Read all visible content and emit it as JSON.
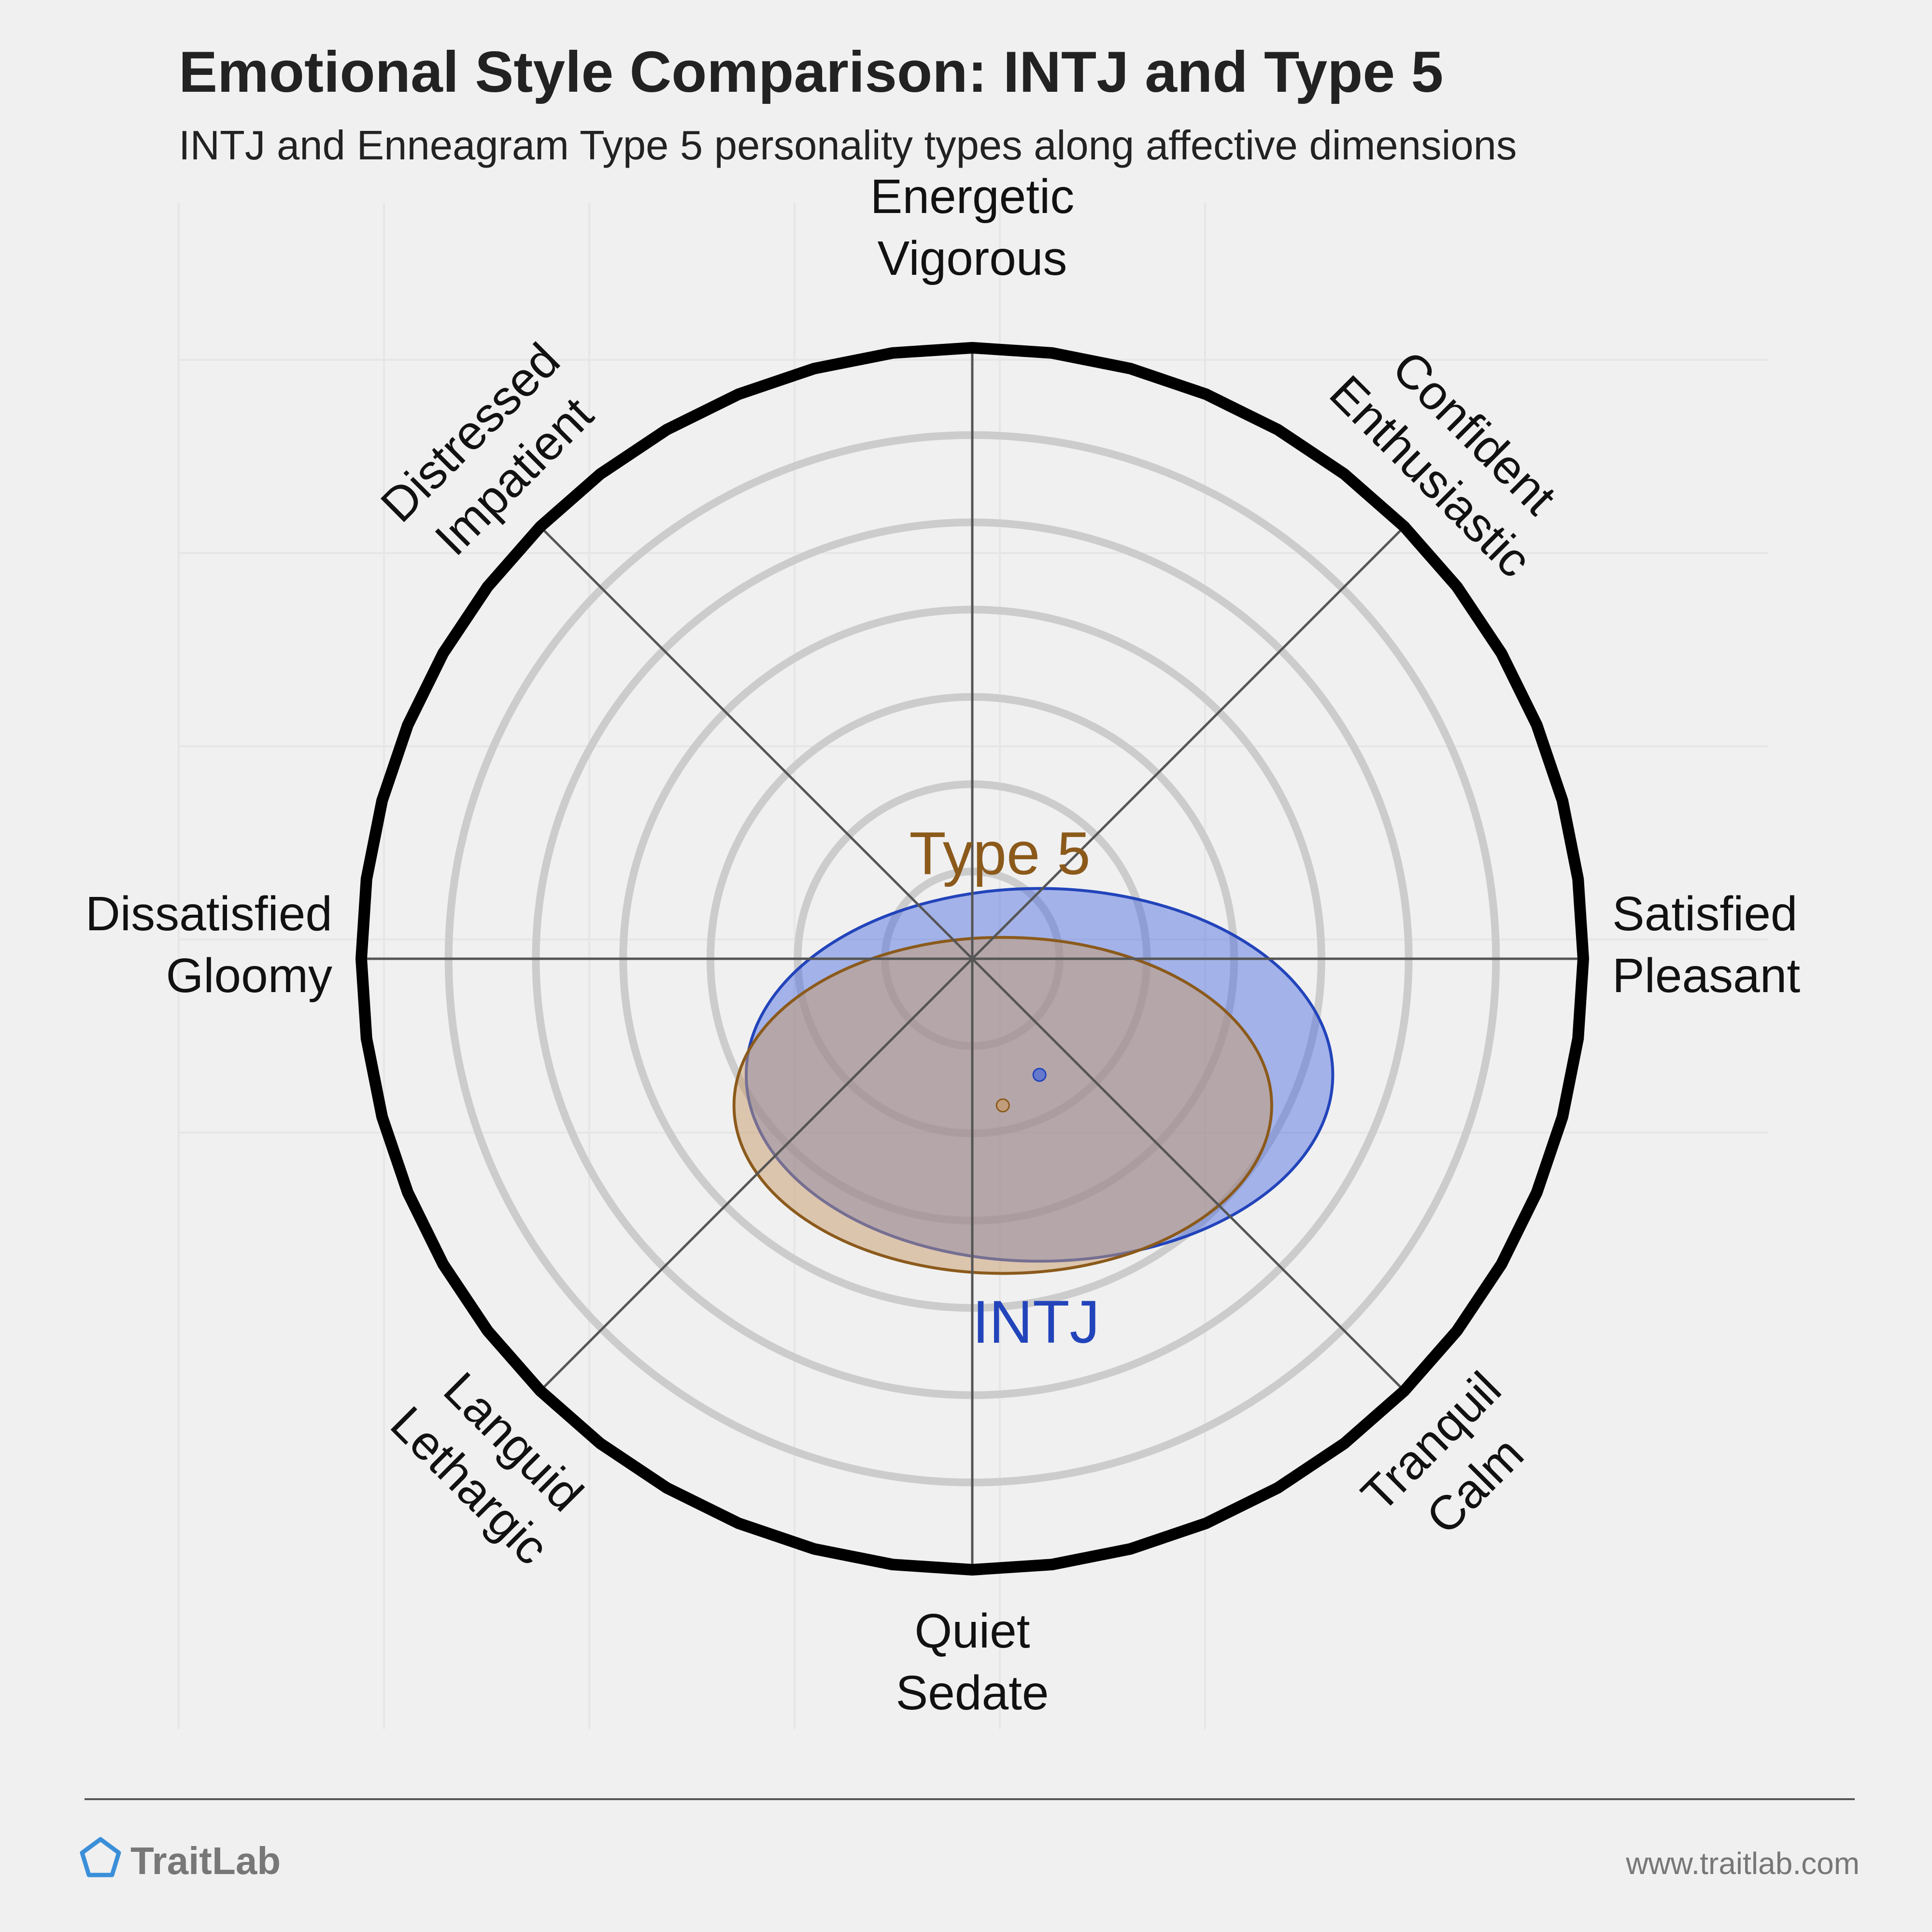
{
  "header": {
    "title": "Emotional Style Comparison: INTJ and Type 5",
    "subtitle": "INTJ and Enneagram Type 5 personality types along affective dimensions"
  },
  "chart_data": {
    "type": "scatter",
    "axes": [
      {
        "name": "energetic",
        "lines": [
          "Energetic",
          "Vigorous"
        ]
      },
      {
        "name": "confident",
        "lines": [
          "Confident",
          "Enthusiastic"
        ]
      },
      {
        "name": "satisfied",
        "lines": [
          "Satisfied",
          "Pleasant"
        ]
      },
      {
        "name": "tranquil",
        "lines": [
          "Tranquil",
          "Calm"
        ]
      },
      {
        "name": "quiet",
        "lines": [
          "Quiet",
          "Sedate"
        ]
      },
      {
        "name": "languid",
        "lines": [
          "Languid",
          "Lethargic"
        ]
      },
      {
        "name": "dissatisfied",
        "lines": [
          "Dissatisfied",
          "Gloomy"
        ]
      },
      {
        "name": "distressed",
        "lines": [
          "Distressed",
          "Impatient"
        ]
      }
    ],
    "rings": 6,
    "series": [
      {
        "name": "INTJ",
        "color": "#2244bb",
        "fill": "#4466dd",
        "center": [
          0.11,
          -0.19
        ],
        "radius": [
          0.96,
          0.61
        ]
      },
      {
        "name": "Type 5",
        "color": "#8B5A1B",
        "fill": "#c89a6a",
        "center": [
          0.05,
          -0.24
        ],
        "radius": [
          0.88,
          0.55
        ]
      }
    ]
  },
  "footer": {
    "brand": "TraitLab",
    "url": "www.traitlab.com"
  }
}
